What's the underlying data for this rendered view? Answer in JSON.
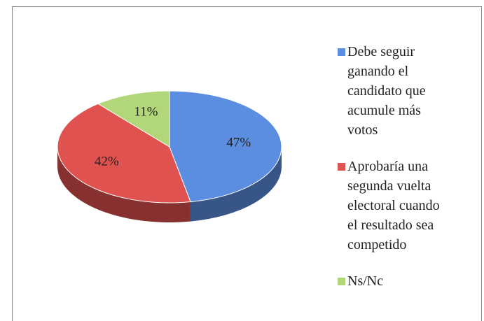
{
  "chart_data": {
    "type": "pie",
    "labels": [
      "Debe seguir ganando el candidato que acumule más votos",
      "Aprobaría una segunda vuelta electoral cuando el resultado sea competido",
      "Ns/Nc"
    ],
    "values": [
      47,
      42,
      11
    ],
    "value_labels": [
      "47%",
      "42%",
      "11%"
    ],
    "colors": [
      "#5b8ee0",
      "#e0524f",
      "#b2d67a"
    ],
    "legend": "right"
  }
}
